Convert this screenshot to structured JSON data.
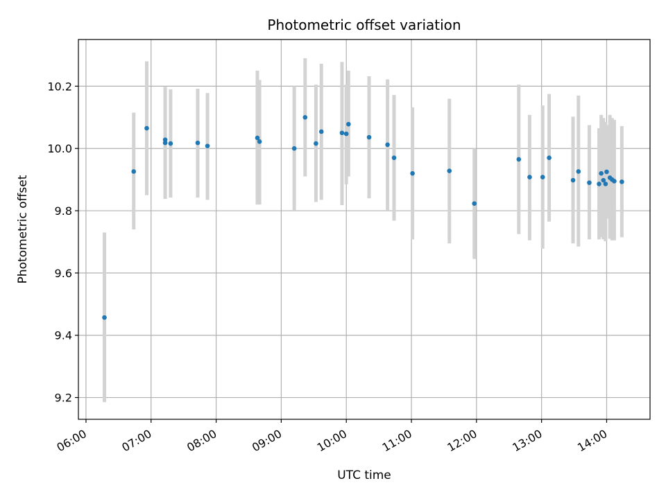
{
  "chart_data": {
    "type": "scatter",
    "title": "Photometric offset variation",
    "xlabel": "UTC time",
    "ylabel": "Photometric offset",
    "xlim": [
      "05:53",
      "14:40"
    ],
    "ylim": [
      9.13,
      10.35
    ],
    "xticks": [
      "06:00",
      "07:00",
      "08:00",
      "09:00",
      "10:00",
      "11:00",
      "12:00",
      "13:00",
      "14:00"
    ],
    "yticks": [
      9.2,
      9.4,
      9.6,
      9.8,
      10.0,
      10.2
    ],
    "yticks_labels": [
      "9.2",
      "9.4",
      "9.6",
      "9.8",
      "10.0",
      "10.2"
    ],
    "grid": true,
    "marker_color": "#1f77b4",
    "errorbar_color": "#d3d3d3",
    "points": [
      {
        "x": "06:17",
        "y": 9.457,
        "err_low": 9.185,
        "err_high": 9.73
      },
      {
        "x": "06:44",
        "y": 9.926,
        "err_low": 9.74,
        "err_high": 10.115
      },
      {
        "x": "06:56",
        "y": 10.065,
        "err_low": 9.85,
        "err_high": 10.28
      },
      {
        "x": "07:13",
        "y": 10.028,
        "err_low": 9.838,
        "err_high": 10.198
      },
      {
        "x": "07:13",
        "y": 10.018,
        "err_low": 9.842,
        "err_high": 10.195
      },
      {
        "x": "07:18",
        "y": 10.016,
        "err_low": 9.842,
        "err_high": 10.19
      },
      {
        "x": "07:43",
        "y": 10.018,
        "err_low": 9.842,
        "err_high": 10.192
      },
      {
        "x": "07:52",
        "y": 10.008,
        "err_low": 9.835,
        "err_high": 10.178
      },
      {
        "x": "08:38",
        "y": 10.034,
        "err_low": 9.82,
        "err_high": 10.25
      },
      {
        "x": "08:40",
        "y": 10.022,
        "err_low": 9.82,
        "err_high": 10.22
      },
      {
        "x": "09:12",
        "y": 10.0,
        "err_low": 9.8,
        "err_high": 10.2
      },
      {
        "x": "09:22",
        "y": 10.1,
        "err_low": 9.91,
        "err_high": 10.29
      },
      {
        "x": "09:32",
        "y": 10.016,
        "err_low": 9.828,
        "err_high": 10.205
      },
      {
        "x": "09:37",
        "y": 10.054,
        "err_low": 9.835,
        "err_high": 10.272
      },
      {
        "x": "09:56",
        "y": 10.05,
        "err_low": 9.818,
        "err_high": 10.278
      },
      {
        "x": "10:00",
        "y": 10.047,
        "err_low": 9.885,
        "err_high": 10.205
      },
      {
        "x": "10:02",
        "y": 10.078,
        "err_low": 9.91,
        "err_high": 10.25
      },
      {
        "x": "10:21",
        "y": 10.036,
        "err_low": 9.84,
        "err_high": 10.232
      },
      {
        "x": "10:38",
        "y": 10.012,
        "err_low": 9.8,
        "err_high": 10.222
      },
      {
        "x": "10:44",
        "y": 9.97,
        "err_low": 9.768,
        "err_high": 10.172
      },
      {
        "x": "11:01",
        "y": 9.92,
        "err_low": 9.708,
        "err_high": 10.132
      },
      {
        "x": "11:35",
        "y": 9.928,
        "err_low": 9.695,
        "err_high": 10.16
      },
      {
        "x": "11:58",
        "y": 9.823,
        "err_low": 9.645,
        "err_high": 10.0
      },
      {
        "x": "12:39",
        "y": 9.965,
        "err_low": 9.725,
        "err_high": 10.205
      },
      {
        "x": "12:49",
        "y": 9.908,
        "err_low": 9.705,
        "err_high": 10.108
      },
      {
        "x": "13:01",
        "y": 9.908,
        "err_low": 9.678,
        "err_high": 10.138
      },
      {
        "x": "13:07",
        "y": 9.97,
        "err_low": 9.765,
        "err_high": 10.175
      },
      {
        "x": "13:29",
        "y": 9.898,
        "err_low": 9.695,
        "err_high": 10.102
      },
      {
        "x": "13:34",
        "y": 9.926,
        "err_low": 9.685,
        "err_high": 10.17
      },
      {
        "x": "13:44",
        "y": 9.89,
        "err_low": 9.708,
        "err_high": 10.075
      },
      {
        "x": "13:53",
        "y": 9.886,
        "err_low": 9.708,
        "err_high": 10.065
      },
      {
        "x": "13:55",
        "y": 9.92,
        "err_low": 9.715,
        "err_high": 10.108
      },
      {
        "x": "13:57",
        "y": 9.898,
        "err_low": 9.708,
        "err_high": 10.098
      },
      {
        "x": "13:59",
        "y": 9.886,
        "err_low": 9.702,
        "err_high": 10.085
      },
      {
        "x": "14:00",
        "y": 9.925,
        "err_low": 9.775,
        "err_high": 10.075
      },
      {
        "x": "14:03",
        "y": 9.906,
        "err_low": 9.71,
        "err_high": 10.108
      },
      {
        "x": "14:05",
        "y": 9.9,
        "err_low": 9.705,
        "err_high": 10.098
      },
      {
        "x": "14:07",
        "y": 9.895,
        "err_low": 9.705,
        "err_high": 10.092
      },
      {
        "x": "14:14",
        "y": 9.893,
        "err_low": 9.715,
        "err_high": 10.072
      }
    ]
  }
}
